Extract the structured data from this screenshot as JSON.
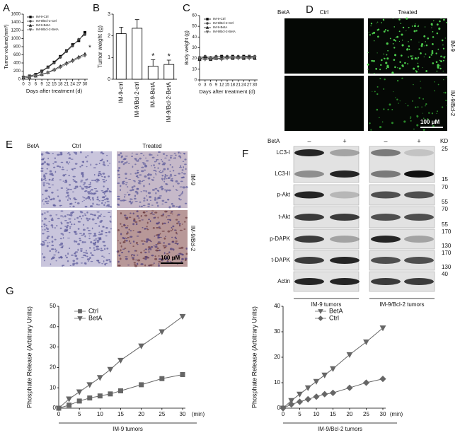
{
  "chart_data": [
    {
      "type": "line",
      "panel": "A",
      "x_label": "Days after treatment (d)",
      "y_label": "Tumor volume(mm³)",
      "x": [
        0,
        3,
        6,
        9,
        12,
        15,
        18,
        21,
        24,
        27,
        30
      ],
      "xlim": [
        0,
        30
      ],
      "xticks": [
        0,
        3,
        6,
        9,
        12,
        15,
        18,
        21,
        24,
        27,
        30
      ],
      "ylim": [
        0,
        1600
      ],
      "yticks": [
        0,
        200,
        400,
        600,
        800,
        1000,
        1200,
        1400,
        1600
      ],
      "annotation": "*",
      "legend": "upper left",
      "series": [
        {
          "name": "IM-9-Ctrl",
          "color": "#000000",
          "marker": "square",
          "values": [
            50,
            80,
            120,
            200,
            300,
            420,
            560,
            700,
            850,
            950,
            1150
          ]
        },
        {
          "name": "IM-9/Bcl-2-Ctrl",
          "color": "#444444",
          "marker": "circle",
          "values": [
            50,
            80,
            110,
            190,
            290,
            400,
            540,
            680,
            820,
            980,
            1100
          ]
        },
        {
          "name": "IM-9-BetA",
          "color": "#222222",
          "marker": "triangle-up",
          "values": [
            30,
            50,
            80,
            120,
            170,
            240,
            320,
            400,
            470,
            550,
            620
          ]
        },
        {
          "name": "IM-9/Bcl-2-BetA",
          "color": "#666666",
          "marker": "triangle-down",
          "values": [
            30,
            50,
            80,
            110,
            160,
            220,
            290,
            370,
            440,
            520,
            580
          ]
        }
      ]
    },
    {
      "type": "bar",
      "panel": "B",
      "y_label": "Tumor weight (g)",
      "categories": [
        "IM-9-ctrl",
        "IM-9/Bcl-2-ctrl",
        "IM-9-BetA",
        "IM-9/Bcl-2-BetA"
      ],
      "values": [
        2.1,
        2.35,
        0.6,
        0.68
      ],
      "errors": [
        0.3,
        0.4,
        0.3,
        0.2
      ],
      "value_annotations": [
        null,
        null,
        "*",
        "*"
      ],
      "ylim": [
        0,
        3
      ],
      "yticks": [
        0,
        1,
        2,
        3
      ],
      "color": "#ffffff"
    },
    {
      "type": "line",
      "panel": "C",
      "x_label": "Days after treatment (d)",
      "y_label": "Body weight (g)",
      "x": [
        0,
        3,
        6,
        9,
        12,
        15,
        18,
        21,
        24,
        27,
        30
      ],
      "xlim": [
        0,
        30
      ],
      "xticks": [
        0,
        3,
        6,
        9,
        12,
        15,
        18,
        21,
        24,
        27,
        30
      ],
      "ylim": [
        0,
        60
      ],
      "yticks": [
        0,
        10,
        20,
        30,
        40,
        50,
        60
      ],
      "legend": "upper left",
      "series": [
        {
          "name": "IM-9-Ctrl",
          "color": "#000000",
          "marker": "square",
          "values": [
            20,
            21,
            20,
            21,
            22,
            21,
            22,
            21,
            22,
            22,
            21
          ]
        },
        {
          "name": "IM-9/Bcl-2-Ctrl",
          "color": "#444444",
          "marker": "circle",
          "values": [
            21,
            22,
            21,
            22,
            21,
            22,
            21,
            22,
            21,
            22,
            22
          ]
        },
        {
          "name": "IM-9-BetA",
          "color": "#222222",
          "marker": "triangle-up",
          "values": [
            19,
            20,
            19,
            20,
            20,
            21,
            20,
            21,
            20,
            21,
            20
          ]
        },
        {
          "name": "IM-9/Bcl-2-BetA",
          "color": "#666666",
          "marker": "triangle-down",
          "values": [
            20,
            19,
            20,
            20,
            19,
            20,
            21,
            20,
            21,
            20,
            21
          ]
        }
      ]
    },
    {
      "type": "line",
      "panel": "G",
      "x_label": "IM-9 tumors",
      "x_unit": "(min)",
      "y_label": "Phosphate Release (Arbitrary Units)",
      "x": [
        0,
        2.5,
        5,
        7.5,
        10,
        12.5,
        15,
        20,
        25,
        30
      ],
      "xlim": [
        0,
        30
      ],
      "xticks": [
        0,
        5,
        10,
        15,
        20,
        25,
        30
      ],
      "ylim": [
        0,
        50
      ],
      "yticks": [
        0,
        10,
        20,
        30,
        40,
        50
      ],
      "legend": "upper left",
      "series": [
        {
          "name": "Ctrl",
          "color": "#666666",
          "marker": "square",
          "values": [
            0,
            1.5,
            3.5,
            5,
            6,
            7,
            8.5,
            11.5,
            14.5,
            16.5
          ]
        },
        {
          "name": "BetA",
          "color": "#666666",
          "marker": "triangle-down",
          "values": [
            0,
            4.5,
            8,
            11.5,
            15,
            19,
            23.5,
            30.5,
            37.5,
            45
          ]
        }
      ]
    },
    {
      "type": "line",
      "x_label": "IM-9/Bcl-2  tumors",
      "x_unit": "(min)",
      "y_label": "Phosphate Release (Arbitrary Units)",
      "x": [
        0,
        2.5,
        5,
        7.5,
        10,
        12.5,
        15,
        20,
        25,
        30
      ],
      "xlim": [
        0,
        30
      ],
      "xticks": [
        0,
        5,
        10,
        15,
        20,
        25,
        30
      ],
      "ylim": [
        0,
        40
      ],
      "yticks": [
        0,
        10,
        20,
        30,
        40
      ],
      "legend": "upper center",
      "series": [
        {
          "name": "BetA",
          "color": "#666666",
          "marker": "triangle-down",
          "values": [
            0,
            3,
            5.5,
            8,
            10.5,
            13,
            15.5,
            21,
            26,
            31.5
          ]
        },
        {
          "name": "Ctrl",
          "color": "#666666",
          "marker": "diamond",
          "values": [
            0,
            1.5,
            2.5,
            3.5,
            4.5,
            5.5,
            6,
            8,
            10,
            11.5
          ]
        }
      ]
    }
  ],
  "panels": {
    "D": {
      "label": "D",
      "treatment": "BetA",
      "columns": [
        "Ctrl",
        "Treated"
      ],
      "rows": [
        "IM-9",
        "IM-9/Bcl-2"
      ],
      "scale": "100 μM"
    },
    "E": {
      "label": "E",
      "treatment": "BetA",
      "columns": [
        "Ctrl",
        "Treated"
      ],
      "rows": [
        "IM-9",
        "IM-9/Bcl-2"
      ],
      "scale": "100 μM"
    },
    "F": {
      "label": "F",
      "treatment": "BetA",
      "signs": [
        "–",
        "+",
        "–",
        "+"
      ],
      "unit": "KD",
      "rows": [
        "LC3-I",
        "LC3-II",
        "p-Akt",
        "t-Akt",
        "p-DAPK",
        "t-DAPK",
        "Actin"
      ],
      "markers": [
        "25",
        "15",
        "70",
        "55",
        "70",
        "55",
        "170",
        "130",
        "170",
        "130",
        "40"
      ],
      "groups": [
        "IM-9 tumors",
        "IM-9/Bcl-2 tumors"
      ]
    }
  }
}
